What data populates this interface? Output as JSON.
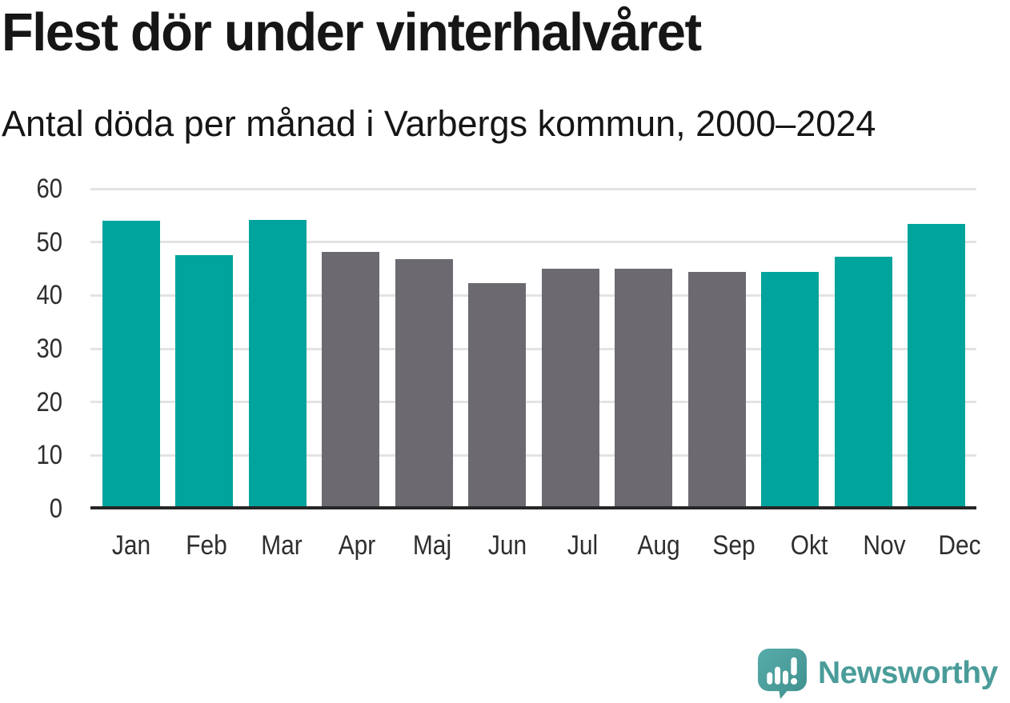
{
  "header": {
    "title": "Flest dör under vinterhalvåret",
    "subtitle": "Antal döda per månad i Varbergs kommun, 2000–2024"
  },
  "chart_data": {
    "type": "bar",
    "title": "Flest dör under vinterhalvåret",
    "subtitle": "Antal döda per månad i Varbergs kommun, 2000–2024",
    "categories": [
      "Jan",
      "Feb",
      "Mar",
      "Apr",
      "Maj",
      "Jun",
      "Jul",
      "Aug",
      "Sep",
      "Okt",
      "Nov",
      "Dec"
    ],
    "values": [
      54.0,
      47.6,
      54.2,
      48.2,
      46.8,
      42.3,
      45.0,
      45.0,
      44.4,
      44.4,
      47.3,
      53.4
    ],
    "bar_colors": [
      "#00a49c",
      "#00a49c",
      "#00a49c",
      "#6c6a70",
      "#6c6a70",
      "#6c6a70",
      "#6c6a70",
      "#6c6a70",
      "#6c6a70",
      "#00a49c",
      "#00a49c",
      "#00a49c"
    ],
    "highlight_color": "#00a49c",
    "muted_color": "#6c6a70",
    "highlighted_months": [
      "Jan",
      "Feb",
      "Mar",
      "Okt",
      "Nov",
      "Dec"
    ],
    "xlabel": "",
    "ylabel": "",
    "ylim": [
      0,
      60
    ],
    "yticks": [
      0,
      10,
      20,
      30,
      40,
      50,
      60
    ],
    "grid": true,
    "gridline_color": "#e3e3e3",
    "axis_line_color": "#262626",
    "legend_position": "none"
  },
  "branding": {
    "logo_text": "Newsworthy",
    "logo_color": "#4a9c99",
    "logo_icon": "speech-bubble-bar-chart-icon",
    "logo_icon_gradient_start": "#57aca9",
    "logo_icon_gradient_end": "#3f908e"
  }
}
